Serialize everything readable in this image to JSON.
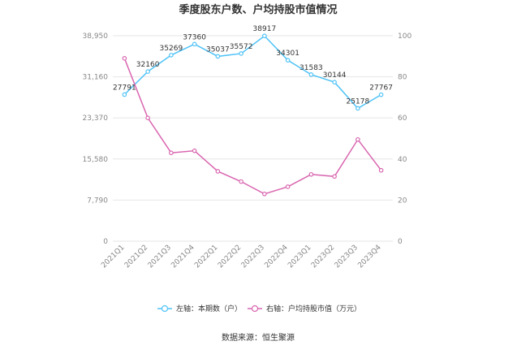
{
  "chart_data": {
    "type": "line",
    "title": "季度股东户数、户均持股市值情况",
    "categories": [
      "2021Q1",
      "2021Q2",
      "2021Q3",
      "2021Q4",
      "2022Q1",
      "2022Q2",
      "2022Q3",
      "2022Q4",
      "2023Q1",
      "2023Q2",
      "2023Q3",
      "2023Q4"
    ],
    "left_axis": {
      "ticks": [
        "0",
        "7,790",
        "15,580",
        "23,370",
        "31,160",
        "38,950"
      ],
      "min": 0,
      "max": 38950
    },
    "right_axis": {
      "ticks": [
        "0",
        "20",
        "40",
        "60",
        "80",
        "100"
      ],
      "min": 0,
      "max": 100
    },
    "series": [
      {
        "name": "左轴：本期数（户）",
        "axis": "left",
        "color": "#4fc3f7",
        "values": [
          27791,
          32160,
          35269,
          37360,
          35037,
          35572,
          38917,
          34301,
          31583,
          30144,
          25178,
          27767
        ],
        "labels": [
          "27791",
          "32160",
          "35269",
          "37360",
          "35037",
          "35572",
          "38917",
          "34301",
          "31583",
          "30144",
          "25178",
          "27767"
        ]
      },
      {
        "name": "右轴：户均持股市值（万元）",
        "axis": "right",
        "color": "#d966b0",
        "values": [
          89,
          60,
          43,
          44,
          34,
          29,
          23,
          26.5,
          32.5,
          31.5,
          49.5,
          34.5
        ]
      }
    ],
    "grid": true,
    "legend_position": "bottom"
  },
  "source": "数据来源：恒生聚源"
}
